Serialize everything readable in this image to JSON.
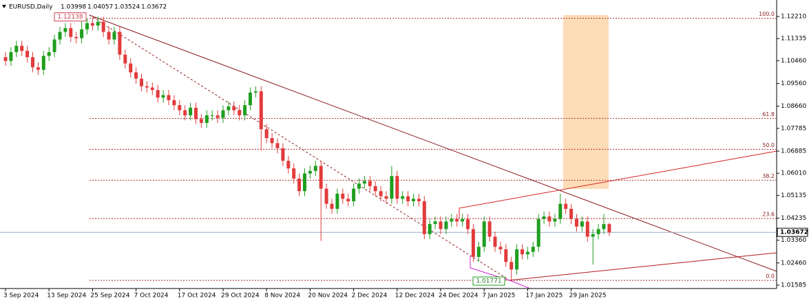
{
  "chart_data": {
    "type": "candlestick",
    "title": "EURUSD,Daily",
    "ohlc_header": [
      1.03998,
      1.04057,
      1.03524,
      1.03672
    ],
    "categories": [
      "3 Sep 2024",
      null,
      null,
      null,
      null,
      null,
      null,
      null,
      "13 Sep 2024",
      null,
      null,
      null,
      null,
      null,
      null,
      null,
      "25 Sep 2024",
      null,
      null,
      null,
      null,
      null,
      null,
      null,
      "7 Oct 2024",
      null,
      null,
      null,
      null,
      null,
      null,
      null,
      "17 Oct 2024",
      null,
      null,
      null,
      null,
      null,
      null,
      null,
      "29 Oct 2024",
      null,
      null,
      null,
      null,
      null,
      null,
      null,
      "8 Nov 2024",
      null,
      null,
      null,
      null,
      null,
      null,
      null,
      "20 Nov 2024",
      null,
      null,
      null,
      null,
      null,
      null,
      null,
      "2 Dec 2024",
      null,
      null,
      null,
      null,
      null,
      null,
      null,
      "12 Dec 2024",
      null,
      null,
      null,
      null,
      null,
      null,
      null,
      "24 Dec 2024",
      null,
      null,
      null,
      null,
      null,
      null,
      null,
      "7 Jan 2025",
      null,
      null,
      null,
      null,
      null,
      null,
      null,
      "17 Jan 2025",
      null,
      null,
      null,
      null,
      null,
      null,
      null,
      "29 Jan 2025",
      null,
      null,
      null,
      null,
      null,
      null,
      null
    ],
    "series": {
      "open": [
        1.106,
        1.1045,
        1.108,
        1.1105,
        1.1085,
        1.106,
        1.102,
        1.101,
        1.1065,
        1.108,
        1.113,
        1.116,
        1.1175,
        1.114,
        1.1135,
        1.117,
        1.1195,
        1.1185,
        1.12,
        1.116,
        1.113,
        1.116,
        1.107,
        1.1035,
        1.1,
        1.0975,
        1.0945,
        1.094,
        1.093,
        1.09,
        1.091,
        1.089,
        1.087,
        1.085,
        1.083,
        1.086,
        1.0815,
        1.08,
        1.083,
        1.083,
        1.082,
        1.085,
        1.0865,
        1.085,
        1.083,
        1.087,
        1.092,
        1.0925,
        1.0775,
        1.074,
        1.072,
        1.07,
        1.065,
        1.062,
        1.058,
        1.053,
        1.06,
        1.061,
        1.063,
        1.054,
        1.048,
        1.046,
        1.052,
        1.05,
        1.049,
        1.054,
        1.056,
        1.057,
        1.055,
        1.053,
        1.051,
        1.05,
        1.059,
        1.05,
        1.051,
        1.049,
        1.05,
        1.049,
        1.036,
        1.04,
        1.041,
        1.038,
        1.041,
        1.042,
        1.041,
        1.042,
        1.038,
        1.027,
        1.031,
        1.041,
        1.035,
        1.031,
        1.03,
        1.025,
        1.022,
        1.03,
        1.028,
        1.029,
        1.031,
        1.042,
        1.043,
        1.041,
        1.042,
        1.048,
        1.046,
        1.042,
        1.039,
        1.041,
        1.035,
        1.036,
        1.038,
        1.03998
      ],
      "high": [
        1.108,
        1.11,
        1.1125,
        1.1125,
        1.1105,
        1.108,
        1.104,
        1.1085,
        1.11,
        1.115,
        1.118,
        1.1195,
        1.1195,
        1.116,
        1.1214,
        1.1215,
        1.1215,
        1.122,
        1.122,
        1.118,
        1.118,
        1.118,
        1.109,
        1.1055,
        1.102,
        1.0995,
        1.0965,
        1.096,
        1.095,
        1.093,
        1.093,
        1.091,
        1.089,
        1.087,
        1.088,
        1.088,
        1.0835,
        1.085,
        1.085,
        1.085,
        1.087,
        1.0885,
        1.0885,
        1.087,
        1.089,
        1.094,
        1.0945,
        1.0945,
        1.0795,
        1.076,
        1.074,
        1.072,
        1.067,
        1.064,
        1.06,
        1.062,
        1.063,
        1.065,
        1.065,
        1.056,
        1.05,
        1.054,
        1.054,
        1.052,
        1.056,
        1.058,
        1.059,
        1.059,
        1.057,
        1.055,
        1.053,
        1.063,
        1.061,
        1.053,
        1.053,
        1.052,
        1.052,
        1.051,
        1.042,
        1.043,
        1.043,
        1.043,
        1.044,
        1.044,
        1.044,
        1.044,
        1.04,
        1.033,
        1.043,
        1.043,
        1.037,
        1.033,
        1.032,
        1.027,
        1.032,
        1.032,
        1.031,
        1.033,
        1.044,
        1.045,
        1.045,
        1.044,
        1.052,
        1.05,
        1.048,
        1.044,
        1.043,
        1.043,
        1.038,
        1.04,
        1.044,
        1.04057
      ],
      "low": [
        1.1025,
        1.1025,
        1.106,
        1.1065,
        1.104,
        1.1,
        1.099,
        1.099,
        1.1045,
        1.106,
        1.111,
        1.114,
        1.112,
        1.1115,
        1.1115,
        1.115,
        1.1165,
        1.1165,
        1.114,
        1.111,
        1.111,
        1.105,
        1.1015,
        1.098,
        1.0955,
        1.0925,
        1.092,
        1.091,
        1.088,
        1.088,
        1.087,
        1.085,
        1.083,
        1.081,
        1.081,
        1.0795,
        1.078,
        1.078,
        1.081,
        1.08,
        1.08,
        1.083,
        1.083,
        1.081,
        1.081,
        1.085,
        1.09,
        1.069,
        1.072,
        1.07,
        1.068,
        1.063,
        1.06,
        1.056,
        1.051,
        1.051,
        1.058,
        1.059,
        1.0333,
        1.046,
        1.044,
        1.044,
        1.048,
        1.047,
        1.047,
        1.052,
        1.054,
        1.053,
        1.051,
        1.049,
        1.048,
        1.048,
        1.048,
        1.048,
        1.047,
        1.047,
        1.047,
        1.034,
        1.034,
        1.038,
        1.036,
        1.036,
        1.039,
        1.039,
        1.039,
        1.036,
        1.025,
        1.025,
        1.029,
        1.033,
        1.029,
        1.028,
        1.023,
        1.0177,
        1.02,
        1.026,
        1.026,
        1.027,
        1.029,
        1.04,
        1.039,
        1.039,
        1.04,
        1.044,
        1.04,
        1.037,
        1.037,
        1.033,
        1.024,
        1.034,
        1.036,
        1.03524
      ],
      "close": [
        1.1045,
        1.108,
        1.1105,
        1.1085,
        1.106,
        1.102,
        1.101,
        1.1065,
        1.108,
        1.113,
        1.116,
        1.1175,
        1.114,
        1.1135,
        1.117,
        1.1195,
        1.1185,
        1.12,
        1.116,
        1.113,
        1.116,
        1.107,
        1.1035,
        1.1,
        1.0975,
        1.0945,
        1.094,
        1.093,
        1.09,
        1.091,
        1.089,
        1.087,
        1.085,
        1.083,
        1.086,
        1.0815,
        1.08,
        1.083,
        1.083,
        1.082,
        1.085,
        1.0865,
        1.085,
        1.083,
        1.087,
        1.092,
        1.0925,
        1.0775,
        1.074,
        1.072,
        1.07,
        1.065,
        1.062,
        1.058,
        1.053,
        1.06,
        1.061,
        1.063,
        1.054,
        1.048,
        1.046,
        1.052,
        1.05,
        1.049,
        1.054,
        1.056,
        1.057,
        1.055,
        1.053,
        1.051,
        1.05,
        1.059,
        1.05,
        1.051,
        1.049,
        1.05,
        1.049,
        1.036,
        1.04,
        1.041,
        1.038,
        1.041,
        1.042,
        1.041,
        1.042,
        1.038,
        1.027,
        1.031,
        1.041,
        1.035,
        1.031,
        1.03,
        1.025,
        1.022,
        1.03,
        1.028,
        1.029,
        1.031,
        1.042,
        1.043,
        1.041,
        1.042,
        1.048,
        1.046,
        1.042,
        1.039,
        1.041,
        1.035,
        1.036,
        1.038,
        1.03998,
        1.03672
      ]
    },
    "up_color": "#1f9e1f",
    "down_color": "#e23b3b",
    "ylim": [
      1.01449,
      1.12862
    ],
    "yticks": [
      {
        "value": 1.1221,
        "label": "1.12210"
      },
      1.11335,
      {
        "value": 1.1046,
        "label": "1.10460"
      },
      {
        "value": 1.0956,
        "label": "1.09560"
      },
      {
        "value": 1.0866,
        "label": "1.08660"
      },
      1.07785,
      1.06885,
      {
        "value": 1.0601,
        "label": "1.06010"
      },
      1.05135,
      1.04235,
      {
        "value": 1.0336,
        "label": "1.03360"
      },
      {
        "value": 1.0246,
        "label": "1.02460"
      },
      1.01585
    ],
    "current_price": 1.03672,
    "fibonacci": {
      "high": 1.12138,
      "low": 1.01771,
      "levels": [
        {
          "value": 0,
          "label": "0.0"
        },
        23.6,
        38.2,
        {
          "value": 50,
          "label": "50.0"
        },
        61.8,
        {
          "value": 100,
          "label": "100.0"
        }
      ]
    }
  }
}
